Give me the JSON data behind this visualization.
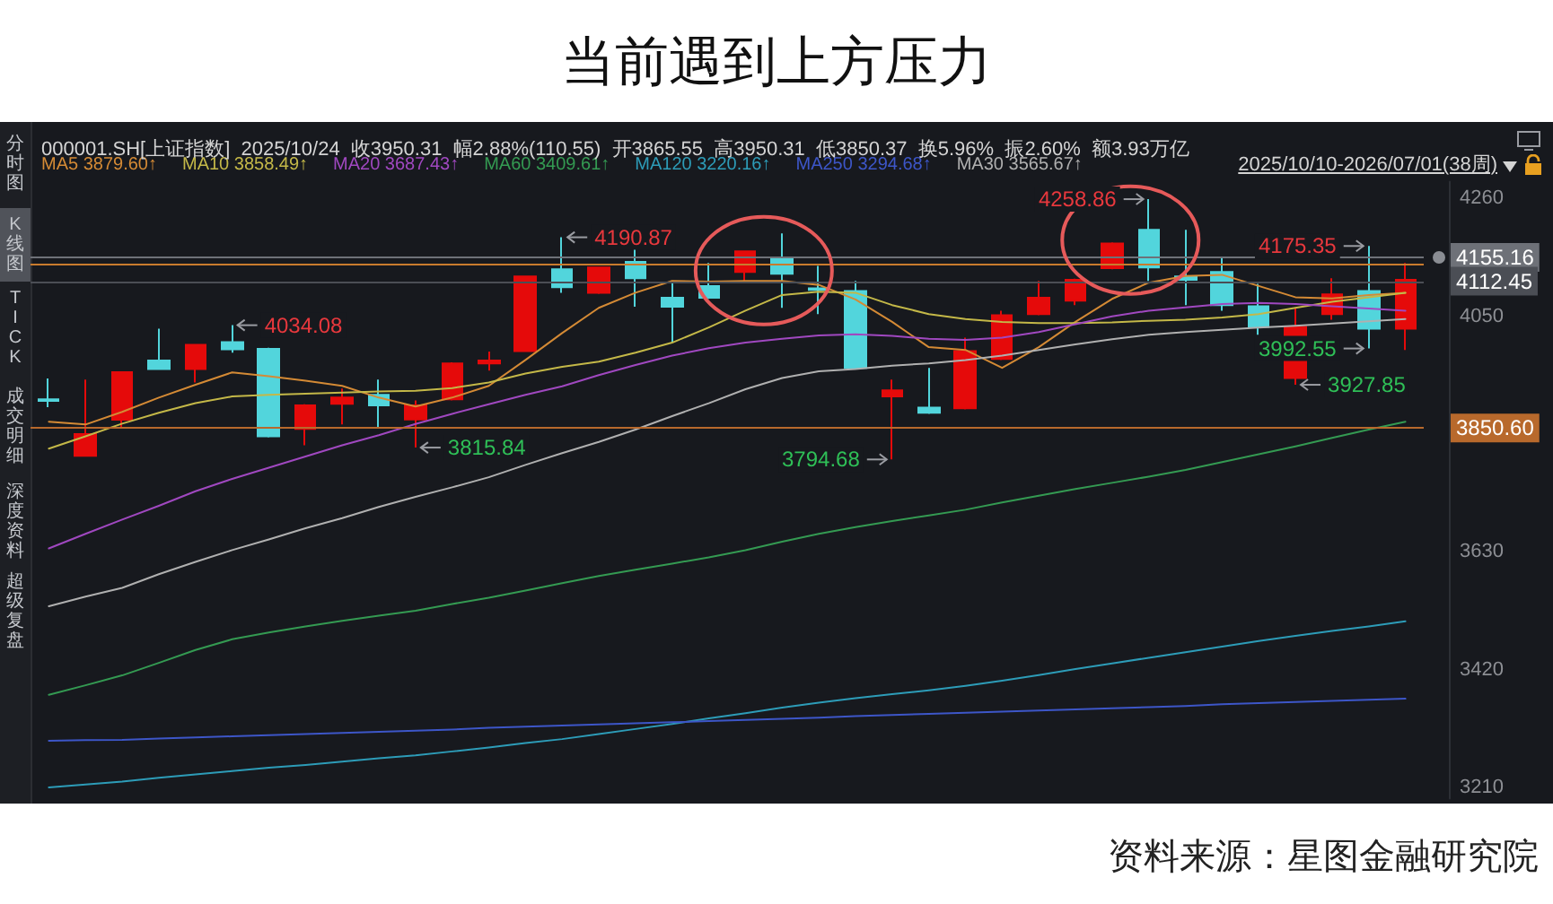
{
  "chart_data": {
    "type": "candlestick",
    "title": "当前遇到上方压力",
    "subtitle": "000001.SH[上证指数]  2025/10/24  收3950.31  幅2.88%(110.55)  开3865.55  高3950.31  低3850.37  换5.96%  振2.60%  额3.93万亿",
    "annotations": [
      "资料来源：星图金融研究院",
      "2025/10/10-2026/07/01(38周)",
      "分时图",
      "K线图",
      "TICK",
      "成交明细",
      "深度资料",
      "超级复盘",
      "4034.08",
      "3815.84",
      "4190.87",
      "3794.68",
      "4258.86",
      "4175.35",
      "3992.55",
      "3927.85"
    ],
    "categories": [
      null,
      null,
      null,
      null,
      null,
      null,
      null,
      null,
      null,
      null,
      null,
      null,
      null,
      null,
      null,
      null,
      null,
      null,
      null,
      null,
      null,
      null,
      null,
      null,
      null,
      null,
      null,
      null,
      null,
      null,
      null,
      null,
      null,
      null,
      null,
      null,
      null,
      null
    ],
    "ohlc": [
      [
        3902,
        3939,
        3888,
        3899
      ],
      [
        3801,
        3937,
        3800,
        3840
      ],
      [
        3865.55,
        3950.31,
        3850.37,
        3950.31
      ],
      [
        3971,
        4028,
        3955,
        3956
      ],
      [
        3956,
        4000,
        3932,
        3999
      ],
      [
        4004,
        4034.08,
        3985,
        3991
      ],
      [
        3992,
        3994,
        3834,
        3836
      ],
      [
        3849,
        3893,
        3820,
        3891
      ],
      [
        3894,
        3921,
        3857,
        3905
      ],
      [
        3910,
        3937,
        3852,
        3891
      ],
      [
        3866,
        3900,
        3815.84,
        3891
      ],
      [
        3902,
        3968,
        3900,
        3966
      ],
      [
        3966,
        3987,
        3953,
        3971
      ],
      [
        3988,
        4122,
        3987,
        4121
      ],
      [
        4134,
        4190.87,
        4092,
        4102
      ],
      [
        4092,
        4138,
        4090,
        4137
      ],
      [
        4147,
        4172,
        4067,
        4118
      ],
      [
        4083,
        4113,
        4003,
        4067
      ],
      [
        4104,
        4145,
        4081,
        4083
      ],
      [
        4129,
        4167,
        4113,
        4166
      ],
      [
        4153,
        4198,
        4065,
        4126
      ],
      [
        4100,
        4140,
        4054,
        4097
      ],
      [
        4095,
        4113,
        3957,
        3958
      ],
      [
        3907,
        3937,
        3794.68,
        3918
      ],
      [
        3887,
        3958,
        3876,
        3878
      ],
      [
        3886,
        4012,
        3884,
        3988
      ],
      [
        3974,
        4060,
        3972,
        4052
      ],
      [
        4054,
        4113,
        4052,
        4083
      ],
      [
        4078,
        4117,
        4070,
        4115
      ],
      [
        4136,
        4182,
        4134,
        4180
      ],
      [
        4204,
        4258.86,
        4113,
        4137
      ],
      [
        4121,
        4204,
        4070,
        4115
      ],
      [
        4129,
        4156,
        4060,
        4070
      ],
      [
        4068,
        4108,
        4017,
        4031
      ],
      [
        3940,
        4065,
        3927.85,
        4031
      ],
      [
        4054,
        4118,
        4044,
        4089
      ],
      [
        4095,
        4175.35,
        3992.55,
        4028
      ],
      [
        4028,
        4145,
        3990,
        4115
      ]
    ],
    "colors": [
      "#52d5dc",
      "#e50a0a",
      "#e50a0a",
      "#52d5dc",
      "#e50a0a",
      "#52d5dc",
      "#52d5dc",
      "#e50a0a",
      "#e50a0a",
      "#52d5dc",
      "#e50a0a",
      "#e50a0a",
      "#e50a0a",
      "#e50a0a",
      "#52d5dc",
      "#e50a0a",
      "#52d5dc",
      "#52d5dc",
      "#52d5dc",
      "#e50a0a",
      "#52d5dc",
      "#52d5dc",
      "#52d5dc",
      "#e50a0a",
      "#52d5dc",
      "#e50a0a",
      "#e50a0a",
      "#e50a0a",
      "#e50a0a",
      "#e50a0a",
      "#52d5dc",
      "#52d5dc",
      "#52d5dc",
      "#52d5dc",
      "#e50a0a",
      "#e50a0a",
      "#52d5dc",
      "#e50a0a"
    ],
    "series": [
      {
        "type": "line",
        "name": "MA5 3879.60↑",
        "color": "#d48a35",
        "values": [
          3862,
          3857,
          3879.6,
          3905,
          3928,
          3950,
          3943,
          3935,
          3926,
          3905,
          3889,
          3905,
          3926,
          3972,
          4020,
          4065,
          4092,
          4113,
          4112,
          4113,
          4113,
          4106,
          4080,
          4040,
          3995,
          3990,
          3958,
          3995,
          4040,
          4081,
          4110,
          4122,
          4124,
          4104,
          4084,
          4082,
          4088,
          4092
        ]
      },
      {
        "type": "line",
        "name": "MA10 3858.49↑",
        "color": "#c4b848",
        "values": [
          3814,
          3836,
          3858.49,
          3878,
          3895,
          3907,
          3910,
          3912,
          3914,
          3916,
          3917,
          3922,
          3932,
          3948,
          3960,
          3969,
          3985,
          4003,
          4030,
          4060,
          4088,
          4094,
          4092,
          4070,
          4054,
          4045,
          4040,
          4038,
          4038,
          4039,
          4042,
          4044,
          4048,
          4054,
          4065,
          4076,
          4084,
          4092
        ]
      },
      {
        "type": "line",
        "name": "MA20 3687.43↑",
        "color": "#a048c0",
        "values": [
          3636,
          3662,
          3687.43,
          3712,
          3738,
          3760,
          3780,
          3800,
          3820,
          3838,
          3858,
          3876,
          3893,
          3910,
          3925,
          3945,
          3963,
          3980,
          3993,
          4003,
          4010,
          4016,
          4018,
          4015,
          4010,
          4008,
          4012,
          4022,
          4036,
          4050,
          4060,
          4066,
          4072,
          4074,
          4072,
          4068,
          4064,
          4060
        ]
      },
      {
        "type": "line",
        "name": "MA60 3409.61↑",
        "color": "#349a52",
        "values": [
          3375,
          3392,
          3409.61,
          3432,
          3455,
          3474,
          3486,
          3497,
          3507,
          3516,
          3525,
          3537,
          3548,
          3561,
          3574,
          3587,
          3598,
          3609,
          3620,
          3633,
          3648,
          3662,
          3674,
          3685,
          3695,
          3705,
          3718,
          3730,
          3742,
          3753,
          3764,
          3776,
          3790,
          3804,
          3818,
          3833,
          3848,
          3862
        ]
      },
      {
        "type": "line",
        "name": "MA120 3220.16↑",
        "color": "#2d9cb8",
        "values": [
          3210,
          3215,
          3220.16,
          3227,
          3233,
          3239,
          3245,
          3250,
          3256,
          3262,
          3267,
          3274,
          3281,
          3289,
          3296,
          3305,
          3314,
          3323,
          3333,
          3342,
          3352,
          3361,
          3369,
          3376,
          3383,
          3391,
          3400,
          3410,
          3421,
          3431,
          3441,
          3451,
          3461,
          3471,
          3480,
          3489,
          3497,
          3506
        ]
      },
      {
        "type": "line",
        "name": "MA250 3294.68↑",
        "color": "#3d56c8",
        "values": [
          3293,
          3294,
          3294.68,
          3297,
          3299,
          3301,
          3303,
          3305,
          3307,
          3309,
          3311,
          3313,
          3316,
          3318,
          3320,
          3322,
          3324,
          3326,
          3328,
          3330,
          3332,
          3334,
          3337,
          3339,
          3341,
          3343,
          3345,
          3347,
          3349,
          3351,
          3353,
          3355,
          3358,
          3360,
          3362,
          3364,
          3366,
          3368
        ]
      },
      {
        "type": "line",
        "name": "MA30 3565.67↑",
        "color": "#b0b0b0",
        "values": [
          3533,
          3550,
          3565.67,
          3590,
          3612,
          3633,
          3652,
          3672,
          3690,
          3710,
          3728,
          3745,
          3763,
          3785,
          3806,
          3826,
          3848,
          3872,
          3895,
          3920,
          3940,
          3952,
          3956,
          3962,
          3966,
          3972,
          3980,
          3990,
          4000,
          4009,
          4017,
          4022,
          4026,
          4030,
          4033,
          4037,
          4041,
          4045
        ]
      }
    ],
    "ylim": [
      3190,
      4290
    ],
    "yticks": [
      3210,
      3420,
      3630,
      4050,
      4260
    ],
    "tick_labels": "y",
    "ref_lines": [
      {
        "axis": "y",
        "value": 4155.16,
        "label": "4155.16",
        "color": "#6e7178"
      },
      {
        "axis": "y",
        "value": 4144,
        "color": "#c97b2d"
      },
      {
        "axis": "y",
        "value": 4112.45,
        "label": "4112.45",
        "color": "#4b4e55"
      },
      {
        "axis": "y",
        "value": 3850.6,
        "label": "3850.60",
        "color": "#b8692c"
      }
    ],
    "legend": "top left",
    "marker": "none"
  }
}
